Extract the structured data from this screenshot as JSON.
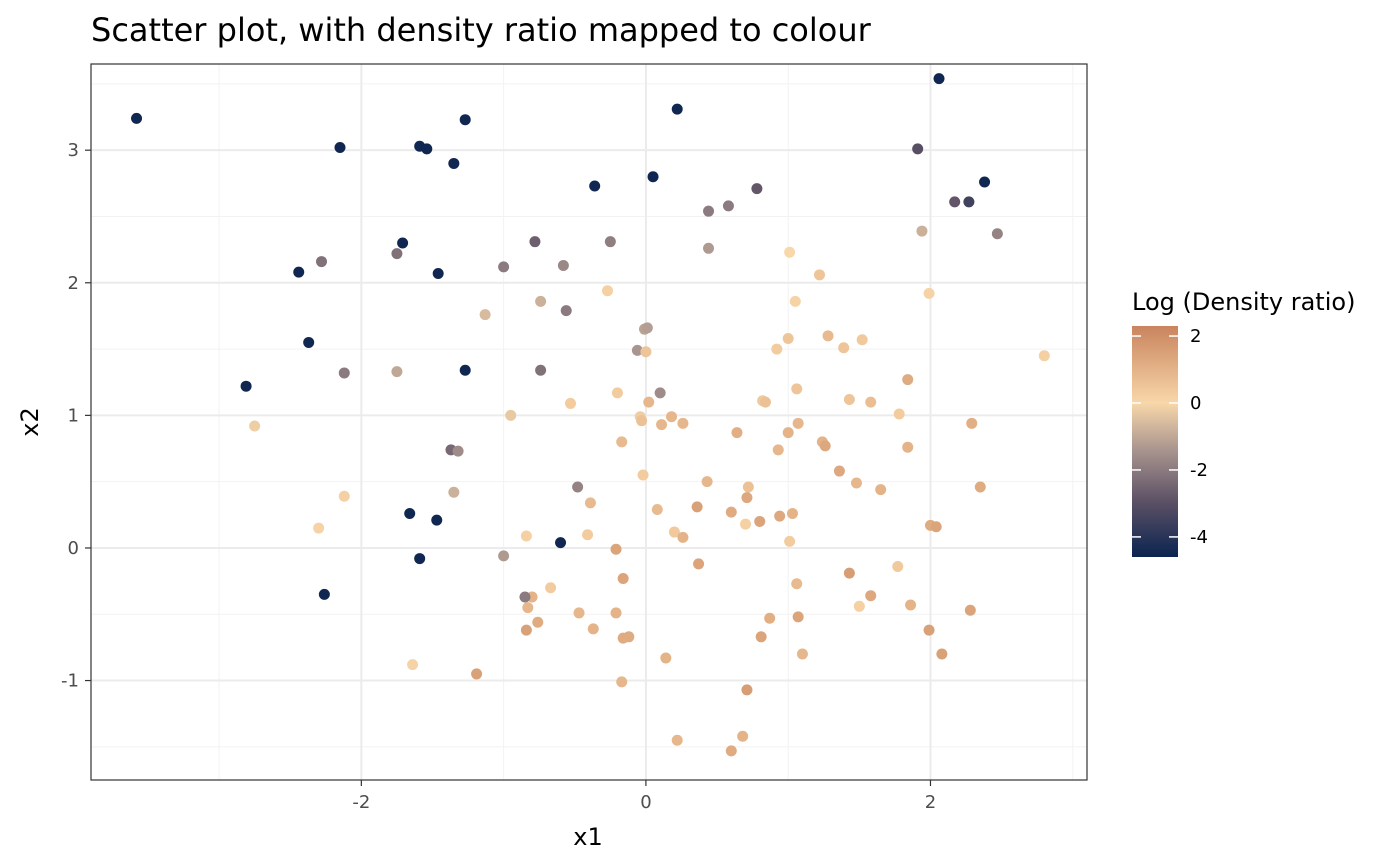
{
  "chart_data": {
    "type": "scatter",
    "title": "Scatter plot, with density ratio mapped to colour",
    "xlabel": "x1",
    "ylabel": "x2",
    "xlim": [
      -3.9,
      3.1
    ],
    "ylim": [
      -1.75,
      3.65
    ],
    "grid": true,
    "x_ticks": [
      -2,
      0,
      2
    ],
    "x_tick_labels": [
      "-2",
      "0",
      "2"
    ],
    "y_ticks": [
      -1,
      0,
      1,
      2,
      3
    ],
    "y_tick_labels": [
      "-1",
      "0",
      "1",
      "2",
      "3"
    ],
    "legend": {
      "title": "Log (Density ratio)",
      "placement": "right",
      "range": [
        -4.6,
        2.3
      ],
      "ticks": [
        2,
        0,
        -2,
        -4
      ],
      "tick_labels": [
        "2",
        "0",
        "-2",
        "-4"
      ],
      "colors": {
        "low": "#0b2450",
        "mid_low": "#5e5266",
        "mid": "#a9958f",
        "zero": "#f8d7a9",
        "high": "#c9845e"
      }
    },
    "points": [
      {
        "x": -3.58,
        "y": 3.24,
        "c": -4.5
      },
      {
        "x": -2.15,
        "y": 3.02,
        "c": -4.5
      },
      {
        "x": -1.59,
        "y": 3.03,
        "c": -4.5
      },
      {
        "x": -1.54,
        "y": 3.01,
        "c": -4.5
      },
      {
        "x": -1.27,
        "y": 3.23,
        "c": -4.5
      },
      {
        "x": -1.35,
        "y": 2.9,
        "c": -4.5
      },
      {
        "x": 0.22,
        "y": 3.31,
        "c": -4.5
      },
      {
        "x": 2.06,
        "y": 3.54,
        "c": -4.5
      },
      {
        "x": 0.05,
        "y": 2.8,
        "c": -4.5
      },
      {
        "x": -0.36,
        "y": 2.73,
        "c": -4.5
      },
      {
        "x": 2.38,
        "y": 2.76,
        "c": -4.5
      },
      {
        "x": 2.27,
        "y": 2.61,
        "c": -3.5
      },
      {
        "x": 2.17,
        "y": 2.61,
        "c": -2.8
      },
      {
        "x": 1.91,
        "y": 3.01,
        "c": -3.0
      },
      {
        "x": 0.78,
        "y": 2.71,
        "c": -2.8
      },
      {
        "x": 0.58,
        "y": 2.58,
        "c": -2.0
      },
      {
        "x": 0.44,
        "y": 2.54,
        "c": -2.0
      },
      {
        "x": -0.25,
        "y": 2.31,
        "c": -1.9
      },
      {
        "x": -0.78,
        "y": 2.31,
        "c": -2.6
      },
      {
        "x": -1.0,
        "y": 2.12,
        "c": -2.0
      },
      {
        "x": -0.58,
        "y": 2.13,
        "c": -1.7
      },
      {
        "x": -1.71,
        "y": 2.3,
        "c": -4.5
      },
      {
        "x": -1.75,
        "y": 2.22,
        "c": -2.2
      },
      {
        "x": -2.28,
        "y": 2.16,
        "c": -2.2
      },
      {
        "x": -2.44,
        "y": 2.08,
        "c": -4.5
      },
      {
        "x": -1.46,
        "y": 2.07,
        "c": -4.5
      },
      {
        "x": -2.37,
        "y": 1.55,
        "c": -4.5
      },
      {
        "x": -2.12,
        "y": 1.32,
        "c": -2.0
      },
      {
        "x": -1.75,
        "y": 1.33,
        "c": -1.0
      },
      {
        "x": -2.81,
        "y": 1.22,
        "c": -4.5
      },
      {
        "x": -2.75,
        "y": 0.92,
        "c": -0.2
      },
      {
        "x": -1.27,
        "y": 1.34,
        "c": -4.5
      },
      {
        "x": -0.74,
        "y": 1.34,
        "c": -2.2
      },
      {
        "x": -0.56,
        "y": 1.79,
        "c": -2.0
      },
      {
        "x": -0.74,
        "y": 1.86,
        "c": -0.8
      },
      {
        "x": -1.13,
        "y": 1.76,
        "c": -0.6
      },
      {
        "x": -0.27,
        "y": 1.94,
        "c": 0.2
      },
      {
        "x": 0.44,
        "y": 2.26,
        "c": -1.3
      },
      {
        "x": 2.47,
        "y": 2.37,
        "c": -1.8
      },
      {
        "x": 1.94,
        "y": 2.39,
        "c": -0.8
      },
      {
        "x": 1.01,
        "y": 2.23,
        "c": 0.0
      },
      {
        "x": 1.22,
        "y": 2.06,
        "c": 0.5
      },
      {
        "x": 1.99,
        "y": 1.92,
        "c": 0.1
      },
      {
        "x": 1.05,
        "y": 1.86,
        "c": 0.1
      },
      {
        "x": 2.8,
        "y": 1.45,
        "c": 0.2
      },
      {
        "x": -0.01,
        "y": 1.65,
        "c": -1.1
      },
      {
        "x": 0.01,
        "y": 1.66,
        "c": -1.2
      },
      {
        "x": -0.06,
        "y": 1.49,
        "c": -1.4
      },
      {
        "x": 0.0,
        "y": 1.48,
        "c": 0.5
      },
      {
        "x": 0.92,
        "y": 1.5,
        "c": 0.3
      },
      {
        "x": 1.0,
        "y": 1.58,
        "c": 0.5
      },
      {
        "x": 1.28,
        "y": 1.6,
        "c": 0.8
      },
      {
        "x": 1.39,
        "y": 1.51,
        "c": 0.5
      },
      {
        "x": 1.52,
        "y": 1.57,
        "c": 0.4
      },
      {
        "x": 1.84,
        "y": 1.27,
        "c": 1.2
      },
      {
        "x": 1.06,
        "y": 1.2,
        "c": 0.5
      },
      {
        "x": 0.82,
        "y": 1.11,
        "c": 0.4
      },
      {
        "x": 0.84,
        "y": 1.1,
        "c": 0.6
      },
      {
        "x": 1.43,
        "y": 1.12,
        "c": 0.5
      },
      {
        "x": 1.58,
        "y": 1.1,
        "c": 0.7
      },
      {
        "x": 1.78,
        "y": 1.01,
        "c": 0.3
      },
      {
        "x": 0.1,
        "y": 1.17,
        "c": -1.6
      },
      {
        "x": 0.02,
        "y": 1.1,
        "c": 0.9
      },
      {
        "x": -0.2,
        "y": 1.17,
        "c": 0.3
      },
      {
        "x": -0.53,
        "y": 1.09,
        "c": 0.3
      },
      {
        "x": -0.95,
        "y": 1.0,
        "c": -0.3
      },
      {
        "x": -0.04,
        "y": 0.99,
        "c": -0.2
      },
      {
        "x": -0.03,
        "y": 0.96,
        "c": 0.6
      },
      {
        "x": 0.18,
        "y": 0.99,
        "c": 0.9
      },
      {
        "x": 0.11,
        "y": 0.93,
        "c": 0.9
      },
      {
        "x": 0.26,
        "y": 0.94,
        "c": 0.9
      },
      {
        "x": 1.07,
        "y": 0.94,
        "c": 0.9
      },
      {
        "x": 1.0,
        "y": 0.87,
        "c": 1.0
      },
      {
        "x": 0.64,
        "y": 0.87,
        "c": 1.1
      },
      {
        "x": 1.24,
        "y": 0.8,
        "c": 1.0
      },
      {
        "x": 1.26,
        "y": 0.77,
        "c": 1.3
      },
      {
        "x": 0.93,
        "y": 0.74,
        "c": 0.9
      },
      {
        "x": 1.84,
        "y": 0.76,
        "c": 1.0
      },
      {
        "x": 2.29,
        "y": 0.94,
        "c": 1.1
      },
      {
        "x": -0.17,
        "y": 0.8,
        "c": 0.8
      },
      {
        "x": -1.37,
        "y": 0.74,
        "c": -2.4
      },
      {
        "x": -1.32,
        "y": 0.73,
        "c": -1.6
      },
      {
        "x": -0.02,
        "y": 0.55,
        "c": 0.3
      },
      {
        "x": 0.43,
        "y": 0.5,
        "c": 0.9
      },
      {
        "x": 0.72,
        "y": 0.46,
        "c": 0.6
      },
      {
        "x": 1.36,
        "y": 0.58,
        "c": 1.3
      },
      {
        "x": 1.48,
        "y": 0.49,
        "c": 0.9
      },
      {
        "x": 1.65,
        "y": 0.44,
        "c": 1.0
      },
      {
        "x": 2.35,
        "y": 0.46,
        "c": 1.2
      },
      {
        "x": -0.48,
        "y": 0.46,
        "c": -1.8
      },
      {
        "x": -1.35,
        "y": 0.42,
        "c": -0.8
      },
      {
        "x": -2.12,
        "y": 0.39,
        "c": 0.2
      },
      {
        "x": -0.39,
        "y": 0.34,
        "c": 0.8
      },
      {
        "x": 0.71,
        "y": 0.38,
        "c": 1.3
      },
      {
        "x": 0.36,
        "y": 0.31,
        "c": 1.5
      },
      {
        "x": 0.08,
        "y": 0.29,
        "c": 0.8
      },
      {
        "x": 0.6,
        "y": 0.27,
        "c": 1.2
      },
      {
        "x": 1.03,
        "y": 0.26,
        "c": 1.0
      },
      {
        "x": 0.94,
        "y": 0.24,
        "c": 1.3
      },
      {
        "x": 0.8,
        "y": 0.2,
        "c": 1.4
      },
      {
        "x": 0.7,
        "y": 0.18,
        "c": 0.2
      },
      {
        "x": 2.0,
        "y": 0.17,
        "c": 1.2
      },
      {
        "x": 2.04,
        "y": 0.16,
        "c": 1.4
      },
      {
        "x": -1.66,
        "y": 0.26,
        "c": -4.5
      },
      {
        "x": -1.47,
        "y": 0.21,
        "c": -4.5
      },
      {
        "x": -2.3,
        "y": 0.15,
        "c": 0.1
      },
      {
        "x": -0.41,
        "y": 0.1,
        "c": 0.3
      },
      {
        "x": -0.84,
        "y": 0.09,
        "c": 0.2
      },
      {
        "x": 0.2,
        "y": 0.12,
        "c": 0.4
      },
      {
        "x": 0.26,
        "y": 0.08,
        "c": 1.0
      },
      {
        "x": 1.01,
        "y": 0.05,
        "c": 0.3
      },
      {
        "x": -0.6,
        "y": 0.04,
        "c": -4.5
      },
      {
        "x": -0.21,
        "y": -0.01,
        "c": 1.4
      },
      {
        "x": -1.0,
        "y": -0.06,
        "c": -1.3
      },
      {
        "x": -1.59,
        "y": -0.08,
        "c": -4.5
      },
      {
        "x": 0.37,
        "y": -0.12,
        "c": 1.4
      },
      {
        "x": 1.77,
        "y": -0.14,
        "c": 0.4
      },
      {
        "x": 1.43,
        "y": -0.19,
        "c": 1.6
      },
      {
        "x": -0.16,
        "y": -0.23,
        "c": 1.4
      },
      {
        "x": 1.06,
        "y": -0.27,
        "c": 0.8
      },
      {
        "x": -0.67,
        "y": -0.3,
        "c": 0.3
      },
      {
        "x": -2.26,
        "y": -0.35,
        "c": -4.5
      },
      {
        "x": -0.8,
        "y": -0.37,
        "c": 1.0
      },
      {
        "x": -0.85,
        "y": -0.37,
        "c": -2.0
      },
      {
        "x": 1.58,
        "y": -0.36,
        "c": 1.3
      },
      {
        "x": 1.5,
        "y": -0.44,
        "c": 0.2
      },
      {
        "x": 1.86,
        "y": -0.43,
        "c": 1.0
      },
      {
        "x": -0.83,
        "y": -0.45,
        "c": 0.9
      },
      {
        "x": -0.47,
        "y": -0.49,
        "c": 0.9
      },
      {
        "x": -0.21,
        "y": -0.49,
        "c": 1.0
      },
      {
        "x": 2.28,
        "y": -0.47,
        "c": 1.4
      },
      {
        "x": 0.87,
        "y": -0.53,
        "c": 1.1
      },
      {
        "x": 1.07,
        "y": -0.52,
        "c": 1.4
      },
      {
        "x": -0.76,
        "y": -0.56,
        "c": 1.2
      },
      {
        "x": -0.37,
        "y": -0.61,
        "c": 1.0
      },
      {
        "x": -0.84,
        "y": -0.62,
        "c": 1.5
      },
      {
        "x": 1.99,
        "y": -0.62,
        "c": 1.5
      },
      {
        "x": -0.16,
        "y": -0.68,
        "c": 1.2
      },
      {
        "x": -0.12,
        "y": -0.67,
        "c": 1.2
      },
      {
        "x": 0.81,
        "y": -0.67,
        "c": 1.4
      },
      {
        "x": 1.1,
        "y": -0.8,
        "c": 0.9
      },
      {
        "x": 2.08,
        "y": -0.8,
        "c": 1.5
      },
      {
        "x": 0.14,
        "y": -0.83,
        "c": 1.0
      },
      {
        "x": -1.64,
        "y": -0.88,
        "c": 0.1
      },
      {
        "x": -1.19,
        "y": -0.95,
        "c": 1.5
      },
      {
        "x": -0.17,
        "y": -1.01,
        "c": 0.9
      },
      {
        "x": 0.71,
        "y": -1.07,
        "c": 1.6
      },
      {
        "x": 0.68,
        "y": -1.42,
        "c": 1.0
      },
      {
        "x": 0.22,
        "y": -1.45,
        "c": 0.9
      },
      {
        "x": 0.6,
        "y": -1.53,
        "c": 1.2
      }
    ]
  }
}
